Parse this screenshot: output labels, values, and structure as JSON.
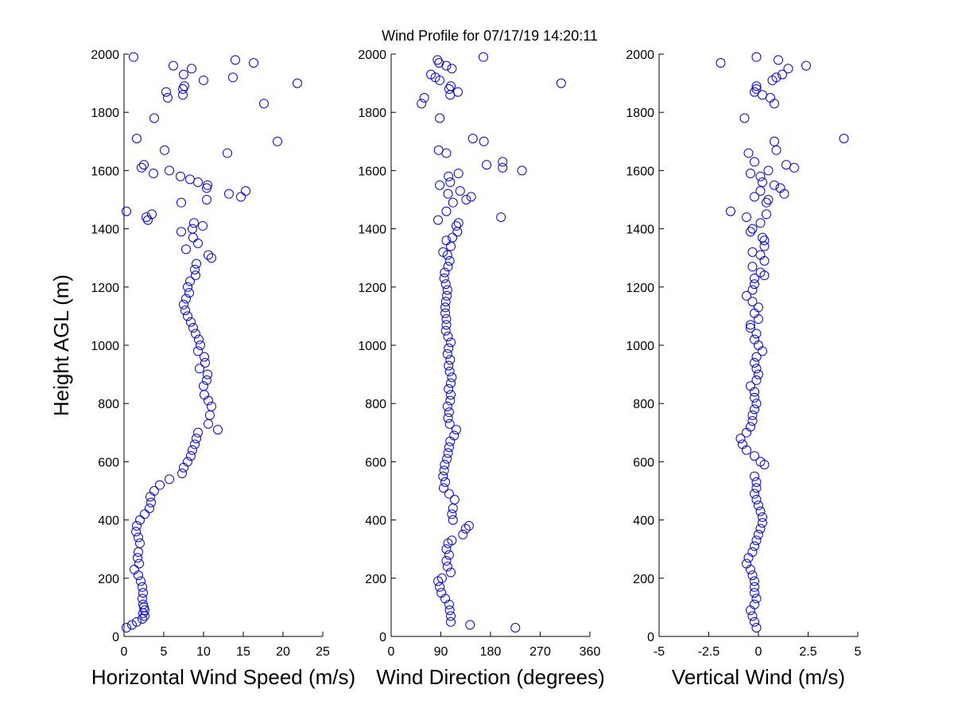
{
  "title": "Wind Profile for  07/17/19 14:20:11",
  "colors": {
    "marker": "#0000ff",
    "axis": "#000000",
    "background": "#ffffff"
  },
  "chart_data": [
    {
      "type": "scatter",
      "marker": "open-circle",
      "xlabel": "Horizontal Wind Speed (m/s)",
      "ylabel": "Height AGL (m)",
      "xlim": [
        0,
        25
      ],
      "ylim": [
        0,
        2000
      ],
      "xticks": [
        "0",
        "5",
        "10",
        "15",
        "20",
        "25"
      ],
      "yticks": [
        "0",
        "200",
        "400",
        "600",
        "800",
        "1000",
        "1200",
        "1400",
        "1600",
        "1800",
        "2000"
      ],
      "grid": false,
      "points": [
        [
          0.3,
          30
        ],
        [
          1,
          40
        ],
        [
          1.6,
          50
        ],
        [
          2.3,
          60
        ],
        [
          2.6,
          70
        ],
        [
          2.4,
          80
        ],
        [
          2.6,
          90
        ],
        [
          2.5,
          100
        ],
        [
          2.4,
          110
        ],
        [
          2.3,
          130
        ],
        [
          2.4,
          150
        ],
        [
          2.3,
          170
        ],
        [
          2.1,
          190
        ],
        [
          1.8,
          210
        ],
        [
          1.3,
          230
        ],
        [
          1.9,
          250
        ],
        [
          1.7,
          270
        ],
        [
          1.8,
          290
        ],
        [
          2,
          320
        ],
        [
          1.8,
          340
        ],
        [
          1.5,
          360
        ],
        [
          1.6,
          380
        ],
        [
          2,
          400
        ],
        [
          2.6,
          420
        ],
        [
          3.2,
          440
        ],
        [
          3.4,
          460
        ],
        [
          3.3,
          480
        ],
        [
          3.8,
          500
        ],
        [
          4.5,
          520
        ],
        [
          5.7,
          540
        ],
        [
          7.3,
          560
        ],
        [
          7.5,
          580
        ],
        [
          8,
          600
        ],
        [
          8.4,
          620
        ],
        [
          8.6,
          640
        ],
        [
          8.9,
          660
        ],
        [
          9.1,
          680
        ],
        [
          9.3,
          700
        ],
        [
          11.8,
          710
        ],
        [
          10.6,
          730
        ],
        [
          10.8,
          760
        ],
        [
          11,
          790
        ],
        [
          10.6,
          810
        ],
        [
          10.1,
          830
        ],
        [
          10,
          860
        ],
        [
          10.4,
          880
        ],
        [
          10.5,
          900
        ],
        [
          9.5,
          920
        ],
        [
          10.2,
          940
        ],
        [
          10.1,
          960
        ],
        [
          9.3,
          980
        ],
        [
          9.6,
          1000
        ],
        [
          9.4,
          1020
        ],
        [
          9,
          1040
        ],
        [
          8.7,
          1060
        ],
        [
          8.4,
          1080
        ],
        [
          8,
          1100
        ],
        [
          7.7,
          1120
        ],
        [
          7.5,
          1140
        ],
        [
          7.8,
          1160
        ],
        [
          8.2,
          1180
        ],
        [
          8,
          1200
        ],
        [
          8.3,
          1220
        ],
        [
          9,
          1240
        ],
        [
          8.9,
          1260
        ],
        [
          9.1,
          1280
        ],
        [
          11,
          1300
        ],
        [
          10.6,
          1310
        ],
        [
          7.8,
          1330
        ],
        [
          9.3,
          1350
        ],
        [
          8.7,
          1370
        ],
        [
          7.2,
          1390
        ],
        [
          8.6,
          1400
        ],
        [
          9.9,
          1410
        ],
        [
          8.8,
          1420
        ],
        [
          3,
          1430
        ],
        [
          3.5,
          1450
        ],
        [
          0.3,
          1460
        ],
        [
          2.8,
          1440
        ],
        [
          7.2,
          1490
        ],
        [
          10.4,
          1500
        ],
        [
          14.7,
          1510
        ],
        [
          15.3,
          1530
        ],
        [
          13.2,
          1520
        ],
        [
          10.4,
          1540
        ],
        [
          10.5,
          1550
        ],
        [
          9.3,
          1560
        ],
        [
          8.3,
          1570
        ],
        [
          7.1,
          1580
        ],
        [
          3.7,
          1590
        ],
        [
          5.7,
          1600
        ],
        [
          2.2,
          1610
        ],
        [
          2.5,
          1620
        ],
        [
          13,
          1660
        ],
        [
          5.1,
          1670
        ],
        [
          19.3,
          1700
        ],
        [
          1.6,
          1710
        ],
        [
          3.8,
          1780
        ],
        [
          17.6,
          1830
        ],
        [
          5.5,
          1850
        ],
        [
          7.4,
          1860
        ],
        [
          5.3,
          1870
        ],
        [
          7.4,
          1880
        ],
        [
          7.6,
          1890
        ],
        [
          21.8,
          1900
        ],
        [
          10,
          1910
        ],
        [
          13.7,
          1920
        ],
        [
          7.5,
          1930
        ],
        [
          8.5,
          1950
        ],
        [
          6.2,
          1960
        ],
        [
          16.3,
          1970
        ],
        [
          14,
          1980
        ],
        [
          1.2,
          1990
        ]
      ]
    },
    {
      "type": "scatter",
      "marker": "open-circle",
      "xlabel": "Wind Direction (degrees)",
      "ylabel": "",
      "xlim": [
        0,
        360
      ],
      "ylim": [
        0,
        2000
      ],
      "xticks": [
        "0",
        "90",
        "180",
        "270",
        "360"
      ],
      "yticks": [
        "0",
        "200",
        "400",
        "600",
        "800",
        "1000",
        "1200",
        "1400",
        "1600",
        "1800",
        "2000"
      ],
      "grid": false,
      "points": [
        [
          225,
          30
        ],
        [
          143,
          40
        ],
        [
          108,
          50
        ],
        [
          108,
          70
        ],
        [
          106,
          90
        ],
        [
          105,
          110
        ],
        [
          98,
          130
        ],
        [
          91,
          150
        ],
        [
          88,
          170
        ],
        [
          85,
          190
        ],
        [
          92,
          200
        ],
        [
          108,
          220
        ],
        [
          102,
          240
        ],
        [
          100,
          260
        ],
        [
          105,
          280
        ],
        [
          100,
          300
        ],
        [
          103,
          320
        ],
        [
          110,
          330
        ],
        [
          130,
          350
        ],
        [
          135,
          370
        ],
        [
          141,
          380
        ],
        [
          112,
          400
        ],
        [
          110,
          420
        ],
        [
          112,
          440
        ],
        [
          115,
          470
        ],
        [
          105,
          490
        ],
        [
          95,
          510
        ],
        [
          98,
          530
        ],
        [
          94,
          550
        ],
        [
          96,
          570
        ],
        [
          97,
          590
        ],
        [
          101,
          610
        ],
        [
          103,
          630
        ],
        [
          105,
          650
        ],
        [
          107,
          670
        ],
        [
          114,
          690
        ],
        [
          118,
          710
        ],
        [
          106,
          730
        ],
        [
          103,
          750
        ],
        [
          105,
          770
        ],
        [
          102,
          790
        ],
        [
          107,
          810
        ],
        [
          108,
          830
        ],
        [
          104,
          850
        ],
        [
          108,
          870
        ],
        [
          110,
          890
        ],
        [
          106,
          910
        ],
        [
          104,
          930
        ],
        [
          107,
          950
        ],
        [
          102,
          970
        ],
        [
          104,
          990
        ],
        [
          108,
          1010
        ],
        [
          103,
          1030
        ],
        [
          99,
          1050
        ],
        [
          100,
          1070
        ],
        [
          100,
          1090
        ],
        [
          98,
          1110
        ],
        [
          98,
          1130
        ],
        [
          99,
          1150
        ],
        [
          101,
          1170
        ],
        [
          102,
          1190
        ],
        [
          99,
          1210
        ],
        [
          96,
          1230
        ],
        [
          97,
          1250
        ],
        [
          103,
          1270
        ],
        [
          106,
          1290
        ],
        [
          102,
          1310
        ],
        [
          94,
          1320
        ],
        [
          108,
          1340
        ],
        [
          100,
          1360
        ],
        [
          111,
          1370
        ],
        [
          120,
          1390
        ],
        [
          118,
          1410
        ],
        [
          122,
          1420
        ],
        [
          85,
          1430
        ],
        [
          199,
          1440
        ],
        [
          100,
          1460
        ],
        [
          145,
          1510
        ],
        [
          112,
          1490
        ],
        [
          136,
          1500
        ],
        [
          125,
          1530
        ],
        [
          103,
          1520
        ],
        [
          88,
          1550
        ],
        [
          107,
          1560
        ],
        [
          104,
          1580
        ],
        [
          122,
          1590
        ],
        [
          237,
          1600
        ],
        [
          202,
          1610
        ],
        [
          173,
          1620
        ],
        [
          202,
          1630
        ],
        [
          100,
          1660
        ],
        [
          86,
          1670
        ],
        [
          168,
          1700
        ],
        [
          148,
          1710
        ],
        [
          88,
          1780
        ],
        [
          55,
          1830
        ],
        [
          60,
          1850
        ],
        [
          107,
          1860
        ],
        [
          121,
          1870
        ],
        [
          105,
          1880
        ],
        [
          108,
          1890
        ],
        [
          308,
          1900
        ],
        [
          88,
          1910
        ],
        [
          80,
          1920
        ],
        [
          72,
          1930
        ],
        [
          110,
          1950
        ],
        [
          100,
          1960
        ],
        [
          87,
          1970
        ],
        [
          84,
          1980
        ],
        [
          167,
          1990
        ]
      ]
    },
    {
      "type": "scatter",
      "marker": "open-circle",
      "xlabel": "Vertical Wind (m/s)",
      "ylabel": "",
      "xlim": [
        -5,
        5
      ],
      "ylim": [
        0,
        2000
      ],
      "xticks": [
        "-5",
        "-2.5",
        "0",
        "2.5",
        "5"
      ],
      "yticks": [
        "0",
        "200",
        "400",
        "600",
        "800",
        "1000",
        "1200",
        "1400",
        "1600",
        "1800",
        "2000"
      ],
      "grid": false,
      "points": [
        [
          -0.1,
          30
        ],
        [
          -0.2,
          50
        ],
        [
          -0.3,
          70
        ],
        [
          -0.4,
          90
        ],
        [
          -0.2,
          110
        ],
        [
          -0.1,
          130
        ],
        [
          -0.2,
          150
        ],
        [
          -0.2,
          170
        ],
        [
          -0.2,
          190
        ],
        [
          -0.3,
          210
        ],
        [
          -0.4,
          230
        ],
        [
          -0.6,
          250
        ],
        [
          -0.5,
          270
        ],
        [
          -0.3,
          290
        ],
        [
          -0.2,
          310
        ],
        [
          -0.1,
          330
        ],
        [
          0,
          350
        ],
        [
          0.1,
          370
        ],
        [
          0.2,
          390
        ],
        [
          0.2,
          410
        ],
        [
          0.1,
          430
        ],
        [
          0,
          450
        ],
        [
          -0.1,
          470
        ],
        [
          -0.2,
          490
        ],
        [
          -0.1,
          510
        ],
        [
          -0.1,
          530
        ],
        [
          -0.2,
          550
        ],
        [
          0.3,
          590
        ],
        [
          0.1,
          600
        ],
        [
          -0.2,
          620
        ],
        [
          -0.6,
          640
        ],
        [
          -0.8,
          660
        ],
        [
          -0.9,
          680
        ],
        [
          -0.6,
          700
        ],
        [
          -0.4,
          720
        ],
        [
          -0.3,
          740
        ],
        [
          -0.3,
          760
        ],
        [
          -0.2,
          780
        ],
        [
          -0.1,
          800
        ],
        [
          -0.2,
          820
        ],
        [
          -0.2,
          840
        ],
        [
          -0.4,
          860
        ],
        [
          -0.1,
          880
        ],
        [
          0,
          900
        ],
        [
          -0.1,
          920
        ],
        [
          -0.2,
          940
        ],
        [
          -0.1,
          960
        ],
        [
          0.2,
          980
        ],
        [
          0,
          1000
        ],
        [
          -0.2,
          1020
        ],
        [
          -0.1,
          1040
        ],
        [
          -0.4,
          1060
        ],
        [
          -0.4,
          1070
        ],
        [
          0,
          1090
        ],
        [
          -0.2,
          1110
        ],
        [
          0,
          1130
        ],
        [
          -0.3,
          1150
        ],
        [
          -0.6,
          1170
        ],
        [
          -0.3,
          1190
        ],
        [
          -0.2,
          1210
        ],
        [
          -0.2,
          1230
        ],
        [
          0.3,
          1240
        ],
        [
          0.1,
          1250
        ],
        [
          -0.3,
          1270
        ],
        [
          0.3,
          1290
        ],
        [
          0.1,
          1310
        ],
        [
          -0.3,
          1320
        ],
        [
          0.3,
          1340
        ],
        [
          0.3,
          1360
        ],
        [
          0.2,
          1370
        ],
        [
          -0.4,
          1390
        ],
        [
          -0.3,
          1400
        ],
        [
          0.1,
          1420
        ],
        [
          -0.6,
          1440
        ],
        [
          -1.4,
          1460
        ],
        [
          0.4,
          1450
        ],
        [
          -0.2,
          1510
        ],
        [
          0.4,
          1490
        ],
        [
          0.5,
          1500
        ],
        [
          1.3,
          1520
        ],
        [
          0.1,
          1530
        ],
        [
          1.1,
          1540
        ],
        [
          0.8,
          1550
        ],
        [
          0.2,
          1560
        ],
        [
          0.1,
          1580
        ],
        [
          -0.4,
          1590
        ],
        [
          0.5,
          1600
        ],
        [
          1.8,
          1610
        ],
        [
          1.4,
          1620
        ],
        [
          -0.2,
          1630
        ],
        [
          -0.5,
          1660
        ],
        [
          0.9,
          1670
        ],
        [
          0.8,
          1700
        ],
        [
          4.3,
          1710
        ],
        [
          -0.7,
          1780
        ],
        [
          0.8,
          1830
        ],
        [
          0.6,
          1850
        ],
        [
          0.2,
          1860
        ],
        [
          -0.2,
          1870
        ],
        [
          -0.1,
          1880
        ],
        [
          -0.1,
          1890
        ],
        [
          0.7,
          1910
        ],
        [
          0.9,
          1920
        ],
        [
          1.2,
          1930
        ],
        [
          1.5,
          1950
        ],
        [
          2.4,
          1960
        ],
        [
          -1.9,
          1970
        ],
        [
          1,
          1980
        ],
        [
          -0.1,
          1990
        ]
      ]
    }
  ]
}
